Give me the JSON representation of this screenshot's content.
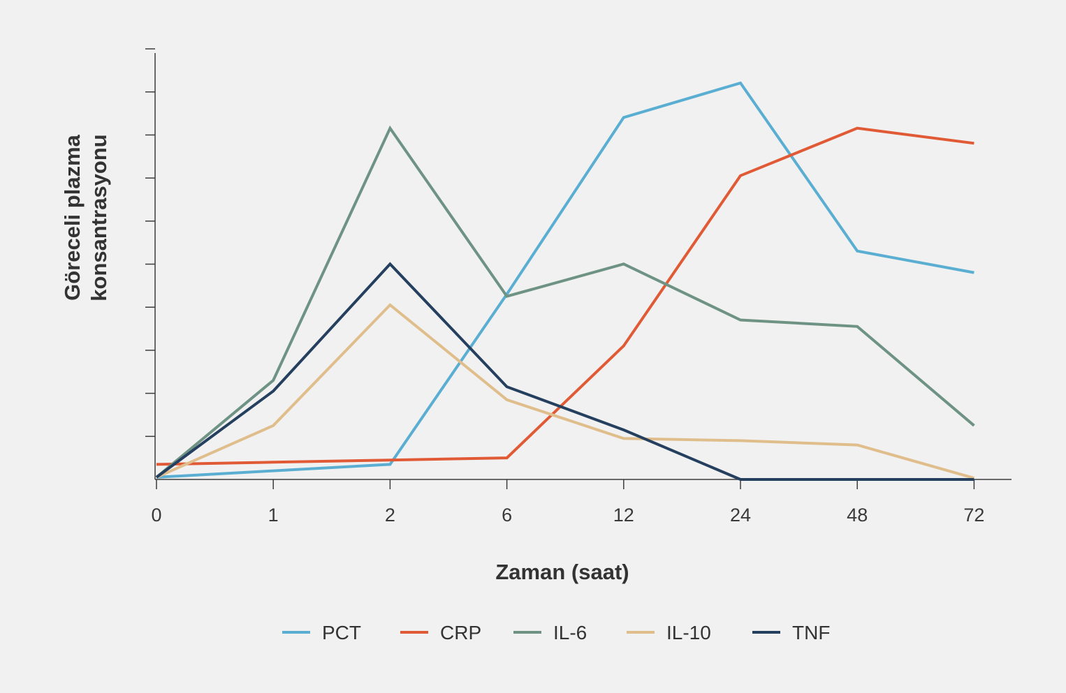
{
  "chart_data": {
    "type": "line",
    "xlabel": "Zaman (saat)",
    "ylabel_lines": [
      "Göreceli plazma",
      "konsantrasyonu"
    ],
    "categories": [
      "0",
      "1",
      "2",
      "6",
      "12",
      "24",
      "48",
      "72"
    ],
    "ylim": [
      0,
      100
    ],
    "y_tick_count": 10,
    "y_tick_labels_shown": false,
    "grid": false,
    "legend_position": "bottom",
    "series": [
      {
        "name": "PCT",
        "color": "#5aaed2",
        "values": [
          0.5,
          2,
          3.5,
          43,
          84,
          92,
          53,
          48
        ]
      },
      {
        "name": "CRP",
        "color": "#e15a36",
        "values": [
          3.5,
          4,
          4.5,
          5,
          31,
          70.5,
          81.5,
          78
        ]
      },
      {
        "name": "IL-6",
        "color": "#6e9384",
        "values": [
          0.5,
          23,
          81.5,
          42.5,
          50,
          37,
          35.5,
          12.5
        ]
      },
      {
        "name": "IL-10",
        "color": "#e0be8c",
        "values": [
          0.5,
          12.5,
          40.5,
          18.5,
          9.5,
          9,
          8,
          0.3
        ]
      },
      {
        "name": "TNF",
        "color": "#253f5f",
        "values": [
          0.5,
          20.5,
          50,
          21.5,
          11.5,
          0,
          0,
          0
        ]
      }
    ]
  }
}
